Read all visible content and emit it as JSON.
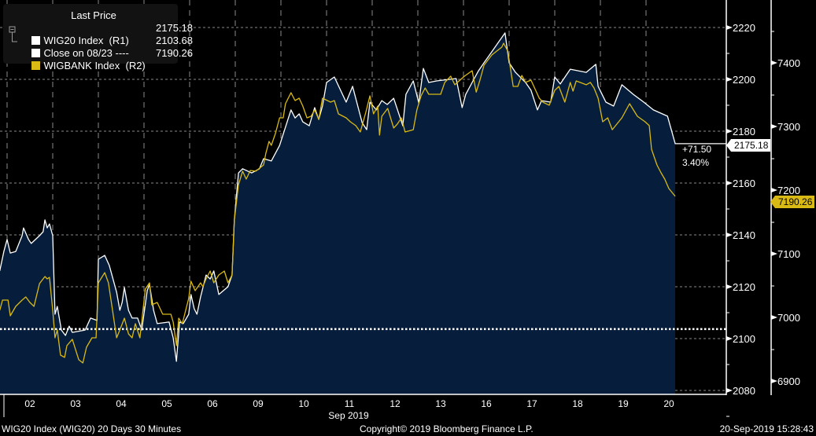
{
  "legend": {
    "title": "Last Price",
    "items": [
      {
        "label": "WIG20 Index  (R1)",
        "value": "2175.18",
        "color": "#ffffff"
      },
      {
        "label": "Close on 08/23 ----",
        "value": "2103.68",
        "color": "#ffffff"
      },
      {
        "label": "WIGBANK Index  (R2)",
        "value": "7190.26",
        "color": "#d9b914"
      }
    ]
  },
  "annotations": {
    "change": "+71.50",
    "change_pct": "3.40%",
    "last_r1": "2175.18",
    "last_r2": "7190.26"
  },
  "footer": {
    "left": "WIG20 Index (WIG20) 20 Days 30 Minutes",
    "center": "Copyright© 2019 Bloomberg Finance L.P.",
    "right": "20-Sep-2019 15:28:43"
  },
  "colors": {
    "background": "#000000",
    "area": "#061e3b",
    "wig20": "#ffffff",
    "wigbank": "#d9b914",
    "grid": "#8a8a8a"
  },
  "chart_data": {
    "type": "area",
    "x_categories": [
      "02",
      "03",
      "04",
      "05",
      "06",
      "09",
      "10",
      "11",
      "12",
      "13",
      "16",
      "17",
      "18",
      "19",
      "20"
    ],
    "x_month_label": "Sep 2019",
    "grid": true,
    "legend_position": "top-left",
    "axes": {
      "r1": {
        "ticks": [
          2080,
          2100,
          2120,
          2140,
          2160,
          2180,
          2200,
          2220
        ],
        "range": [
          2078,
          2225
        ]
      },
      "r2": {
        "ticks": [
          6900,
          7000,
          7100,
          7200,
          7300,
          7400
        ],
        "range": [
          6880,
          7450
        ]
      }
    },
    "reference_line": {
      "name": "Close on 08/23",
      "value": 2103.68,
      "axis": "r1"
    },
    "series": [
      {
        "name": "WIG20 Index",
        "axis": "r1",
        "style": "area",
        "points": [
          [
            -0.16,
            2126.1
          ],
          [
            -0.07,
            2133.6
          ],
          [
            0,
            2138.2
          ],
          [
            0.07,
            2133.0
          ],
          [
            0.19,
            2133.6
          ],
          [
            0.33,
            2139.7
          ],
          [
            0.36,
            2142.7
          ],
          [
            0.47,
            2138.2
          ],
          [
            0.53,
            2136.7
          ],
          [
            0.71,
            2139.7
          ],
          [
            0.79,
            2141.2
          ],
          [
            0.83,
            2145.8
          ],
          [
            0.88,
            2142.7
          ],
          [
            0.93,
            2144.2
          ],
          [
            1.0,
            2139.7
          ],
          [
            1.05,
            2109.4
          ],
          [
            1.1,
            2112.4
          ],
          [
            1.19,
            2103.3
          ],
          [
            1.28,
            2101.2
          ],
          [
            1.36,
            2104.8
          ],
          [
            1.43,
            2102.4
          ],
          [
            1.71,
            2103.3
          ],
          [
            1.83,
            2107.9
          ],
          [
            1.97,
            2107.0
          ],
          [
            2.0,
            2130.6
          ],
          [
            2.14,
            2132.1
          ],
          [
            2.24,
            2128.2
          ],
          [
            2.4,
            2117.9
          ],
          [
            2.47,
            2110.9
          ],
          [
            2.52,
            2113.9
          ],
          [
            2.57,
            2119.7
          ],
          [
            2.66,
            2110.9
          ],
          [
            2.74,
            2107.9
          ],
          [
            2.86,
            2107.9
          ],
          [
            2.95,
            2103.3
          ],
          [
            3.07,
            2118.5
          ],
          [
            3.12,
            2120.9
          ],
          [
            3.21,
            2110.9
          ],
          [
            3.29,
            2105.8
          ],
          [
            3.55,
            2106.4
          ],
          [
            3.64,
            2100.3
          ],
          [
            3.71,
            2091.2
          ],
          [
            3.78,
            2106.4
          ],
          [
            3.86,
            2105.8
          ],
          [
            3.98,
            2109.4
          ],
          [
            4.03,
            2117.0
          ],
          [
            4.1,
            2111.5
          ],
          [
            4.16,
            2109.4
          ],
          [
            4.24,
            2116.1
          ],
          [
            4.36,
            2124.5
          ],
          [
            4.45,
            2123.0
          ],
          [
            4.53,
            2126.1
          ],
          [
            4.64,
            2117.0
          ],
          [
            4.84,
            2120.0
          ],
          [
            4.93,
            2124.5
          ],
          [
            4.98,
            2145.8
          ],
          [
            5.07,
            2163.9
          ],
          [
            5.16,
            2165.5
          ],
          [
            5.36,
            2163.9
          ],
          [
            5.53,
            2165.5
          ],
          [
            5.62,
            2169.4
          ],
          [
            5.79,
            2168.5
          ],
          [
            5.97,
            2174.5
          ],
          [
            6.22,
            2188.2
          ],
          [
            6.31,
            2185.1
          ],
          [
            6.4,
            2186.7
          ],
          [
            6.48,
            2183.6
          ],
          [
            6.62,
            2182.1
          ],
          [
            6.74,
            2189.1
          ],
          [
            6.83,
            2184.5
          ],
          [
            6.91,
            2189.7
          ],
          [
            7.0,
            2198.8
          ],
          [
            7.17,
            2200.9
          ],
          [
            7.43,
            2191.2
          ],
          [
            7.57,
            2197.3
          ],
          [
            7.78,
            2183.3
          ],
          [
            7.88,
            2180.6
          ],
          [
            7.95,
            2191.2
          ],
          [
            8.09,
            2188.2
          ],
          [
            8.21,
            2191.8
          ],
          [
            8.33,
            2190.3
          ],
          [
            8.47,
            2192.7
          ],
          [
            8.67,
            2182.1
          ],
          [
            8.74,
            2194.2
          ],
          [
            8.9,
            2199.4
          ],
          [
            9.02,
            2190.9
          ],
          [
            9.12,
            2204.2
          ],
          [
            9.24,
            2198.8
          ],
          [
            9.41,
            2199.4
          ],
          [
            9.84,
            2200.3
          ],
          [
            9.97,
            2189.1
          ],
          [
            10.05,
            2194.2
          ],
          [
            10.19,
            2198.8
          ],
          [
            10.33,
            2203.3
          ],
          [
            10.45,
            2206.4
          ],
          [
            10.57,
            2209.4
          ],
          [
            10.91,
            2217.9
          ],
          [
            11.0,
            2206.4
          ],
          [
            11.14,
            2202.7
          ],
          [
            11.36,
            2198.8
          ],
          [
            11.48,
            2195.8
          ],
          [
            11.62,
            2188.2
          ],
          [
            11.71,
            2191.8
          ],
          [
            11.91,
            2191.2
          ],
          [
            12.0,
            2200.9
          ],
          [
            12.12,
            2198.2
          ],
          [
            12.34,
            2203.9
          ],
          [
            12.69,
            2202.7
          ],
          [
            12.9,
            2205.8
          ],
          [
            12.95,
            2197.3
          ],
          [
            13.12,
            2191.2
          ],
          [
            13.29,
            2189.7
          ],
          [
            13.47,
            2197.9
          ],
          [
            13.72,
            2194.2
          ],
          [
            13.95,
            2191.2
          ],
          [
            14.16,
            2188.2
          ],
          [
            14.47,
            2185.8
          ],
          [
            14.64,
            2175.18
          ]
        ]
      },
      {
        "name": "WIGBANK Index",
        "axis": "r2",
        "style": "line",
        "points": [
          [
            -0.16,
            7011.1
          ],
          [
            -0.1,
            7027.2
          ],
          [
            0.02,
            7027.2
          ],
          [
            0.07,
            7002.5
          ],
          [
            0.19,
            7017.3
          ],
          [
            0.33,
            7027.2
          ],
          [
            0.41,
            7032.1
          ],
          [
            0.5,
            7023.5
          ],
          [
            0.59,
            7017.3
          ],
          [
            0.71,
            7053.1
          ],
          [
            0.83,
            7064.2
          ],
          [
            0.88,
            7060.5
          ],
          [
            0.93,
            7062.9
          ],
          [
            1.0,
            7011.1
          ],
          [
            1.05,
            6967.9
          ],
          [
            1.1,
            6980.3
          ],
          [
            1.17,
            6940.8
          ],
          [
            1.26,
            6937.1
          ],
          [
            1.31,
            6955.6
          ],
          [
            1.43,
            6965.5
          ],
          [
            1.57,
            6933.4
          ],
          [
            1.66,
            6928.4
          ],
          [
            1.74,
            6953.1
          ],
          [
            1.86,
            6967.9
          ],
          [
            1.95,
            6967.9
          ],
          [
            2.0,
            7054.3
          ],
          [
            2.14,
            7070.4
          ],
          [
            2.22,
            7054.3
          ],
          [
            2.4,
            6967.9
          ],
          [
            2.47,
            6980.3
          ],
          [
            2.57,
            6998.8
          ],
          [
            2.66,
            6974.1
          ],
          [
            2.74,
            6967.9
          ],
          [
            2.81,
            6990.1
          ],
          [
            2.91,
            6967.9
          ],
          [
            3.03,
            7044.5
          ],
          [
            3.12,
            7054.3
          ],
          [
            3.17,
            7019.8
          ],
          [
            3.29,
            7023.5
          ],
          [
            3.41,
            7005.0
          ],
          [
            3.59,
            7005.0
          ],
          [
            3.64,
            6992.6
          ],
          [
            3.71,
            6955.6
          ],
          [
            3.76,
            6998.8
          ],
          [
            3.84,
            6990.1
          ],
          [
            3.98,
            7029.7
          ],
          [
            4.03,
            7056.8
          ],
          [
            4.12,
            7042.0
          ],
          [
            4.24,
            7054.3
          ],
          [
            4.29,
            7048.2
          ],
          [
            4.36,
            7060.5
          ],
          [
            4.45,
            7072.9
          ],
          [
            4.53,
            7054.3
          ],
          [
            4.64,
            7066.7
          ],
          [
            4.76,
            7072.9
          ],
          [
            4.84,
            7054.3
          ],
          [
            4.93,
            7066.7
          ],
          [
            4.98,
            7153.1
          ],
          [
            5.07,
            7208.7
          ],
          [
            5.16,
            7229.7
          ],
          [
            5.24,
            7217.3
          ],
          [
            5.33,
            7230.9
          ],
          [
            5.45,
            7229.7
          ],
          [
            5.62,
            7239.5
          ],
          [
            5.67,
            7258.1
          ],
          [
            5.74,
            7276.6
          ],
          [
            5.79,
            7270.4
          ],
          [
            5.88,
            7288.9
          ],
          [
            5.97,
            7313.6
          ],
          [
            6.05,
            7313.6
          ],
          [
            6.1,
            7335.8
          ],
          [
            6.22,
            7353.1
          ],
          [
            6.31,
            7340.8
          ],
          [
            6.4,
            7344.5
          ],
          [
            6.48,
            7332.1
          ],
          [
            6.57,
            7313.6
          ],
          [
            6.66,
            7316.1
          ],
          [
            6.74,
            7326.0
          ],
          [
            6.83,
            7311.1
          ],
          [
            6.91,
            7344.5
          ],
          [
            7.09,
            7338.3
          ],
          [
            7.17,
            7340.8
          ],
          [
            7.26,
            7319.8
          ],
          [
            7.43,
            7313.6
          ],
          [
            7.52,
            7307.4
          ],
          [
            7.64,
            7301.3
          ],
          [
            7.74,
            7291.4
          ],
          [
            7.86,
            7322.3
          ],
          [
            7.95,
            7348.2
          ],
          [
            8.03,
            7319.8
          ],
          [
            8.12,
            7332.1
          ],
          [
            8.16,
            7286.4
          ],
          [
            8.21,
            7316.1
          ],
          [
            8.34,
            7328.4
          ],
          [
            8.47,
            7297.6
          ],
          [
            8.55,
            7303.7
          ],
          [
            8.64,
            7313.6
          ],
          [
            8.72,
            7291.4
          ],
          [
            8.9,
            7295.0
          ],
          [
            8.98,
            7326.0
          ],
          [
            9.07,
            7348.2
          ],
          [
            9.16,
            7360.5
          ],
          [
            9.24,
            7350.6
          ],
          [
            9.5,
            7350.6
          ],
          [
            9.59,
            7369.2
          ],
          [
            9.72,
            7379.0
          ],
          [
            9.81,
            7365.5
          ],
          [
            10.02,
            7379.0
          ],
          [
            10.19,
            7387.7
          ],
          [
            10.28,
            7353.9
          ],
          [
            10.36,
            7372.9
          ],
          [
            10.45,
            7396.3
          ],
          [
            10.62,
            7412.4
          ],
          [
            10.84,
            7424.7
          ],
          [
            10.88,
            7430.9
          ],
          [
            10.97,
            7418.6
          ],
          [
            11.09,
            7363.0
          ],
          [
            11.19,
            7363.0
          ],
          [
            11.28,
            7380.3
          ],
          [
            11.36,
            7369.2
          ],
          [
            11.48,
            7372.9
          ],
          [
            11.66,
            7344.5
          ],
          [
            11.74,
            7338.3
          ],
          [
            11.88,
            7333.4
          ],
          [
            12.0,
            7356.8
          ],
          [
            12.09,
            7363.0
          ],
          [
            12.22,
            7338.3
          ],
          [
            12.34,
            7369.2
          ],
          [
            12.4,
            7355.6
          ],
          [
            12.47,
            7371.6
          ],
          [
            12.69,
            7365.5
          ],
          [
            12.78,
            7369.2
          ],
          [
            12.86,
            7360.5
          ],
          [
            12.95,
            7344.5
          ],
          [
            13.05,
            7307.4
          ],
          [
            13.16,
            7313.6
          ],
          [
            13.26,
            7294.9
          ],
          [
            13.47,
            7313.6
          ],
          [
            13.64,
            7335.8
          ],
          [
            13.81,
            7316.1
          ],
          [
            13.98,
            7307.4
          ],
          [
            14.07,
            7301.3
          ],
          [
            14.12,
            7264.2
          ],
          [
            14.24,
            7239.5
          ],
          [
            14.33,
            7227.2
          ],
          [
            14.41,
            7217.3
          ],
          [
            14.5,
            7202.5
          ],
          [
            14.64,
            7190.26
          ]
        ]
      }
    ]
  }
}
